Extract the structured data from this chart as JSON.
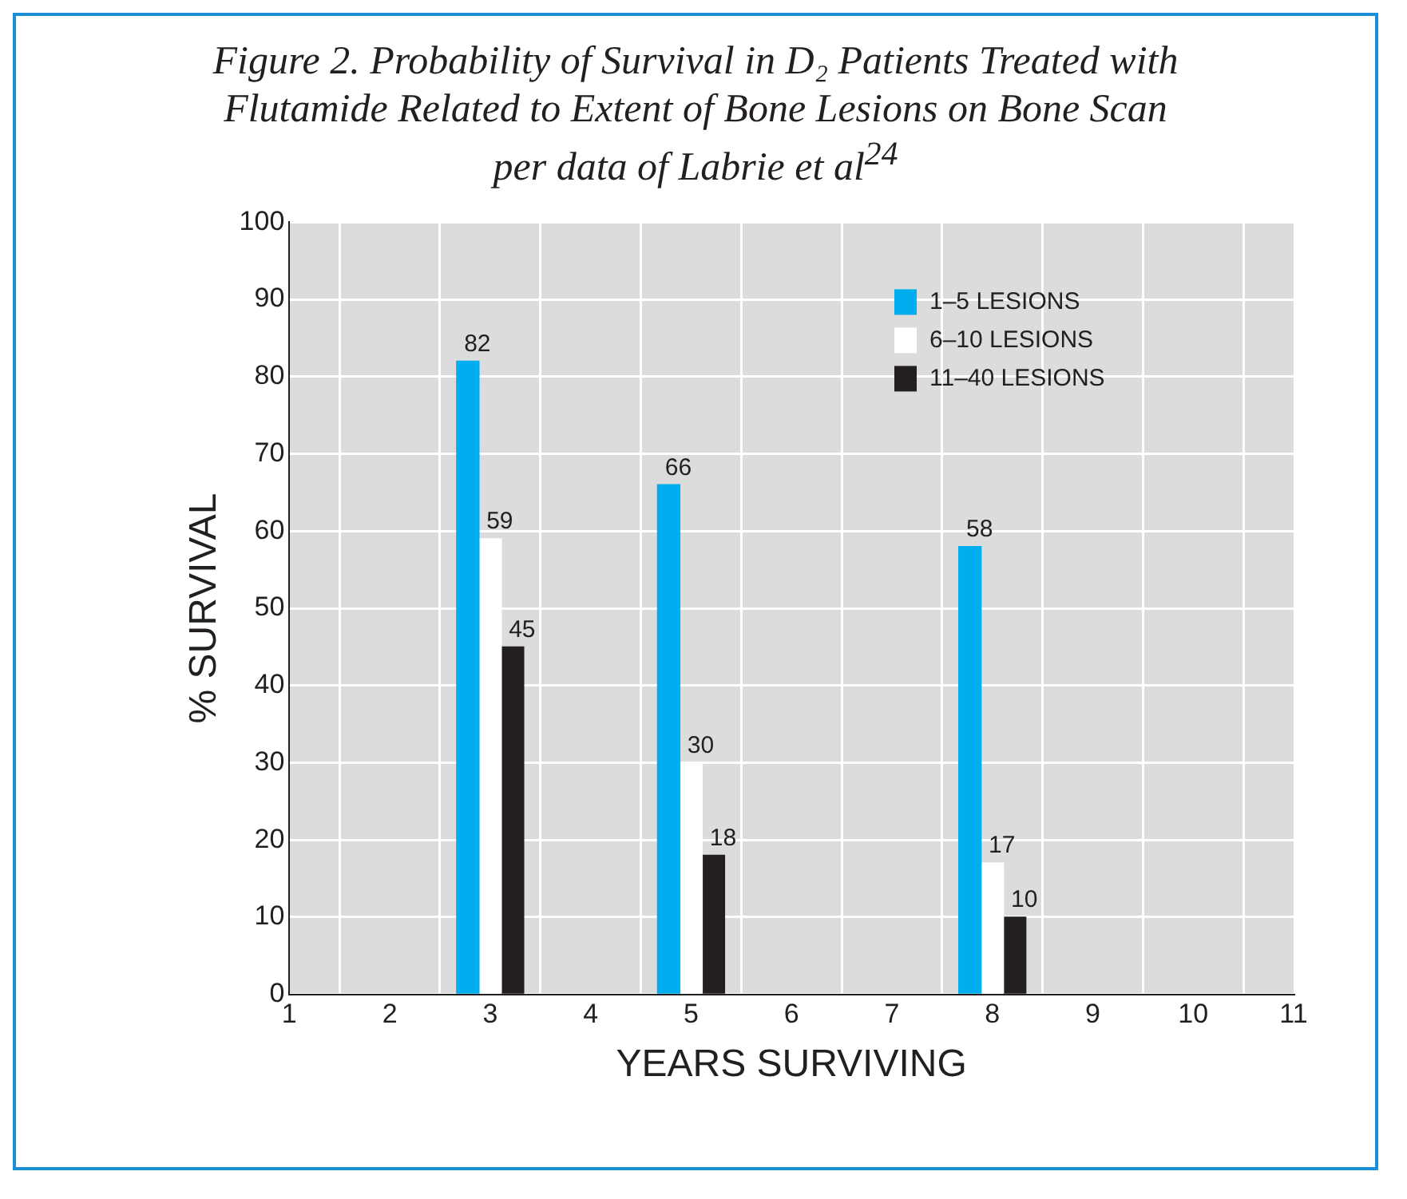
{
  "chart_data": {
    "type": "bar",
    "title": "Figure 2. Probability of Survival in D₂ Patients Treated with Flutamide Related to Extent of Bone Lesions on Bone Scan per data of Labrie et al$^{24}$",
    "xlabel": "YEARS SURVIVING",
    "ylabel": "% SURVIVAL",
    "x": [
      3,
      5,
      8
    ],
    "series": [
      {
        "name": "1–5 LESIONS",
        "color": "#00aeef",
        "values": [
          82,
          66,
          58
        ]
      },
      {
        "name": "6–10 LESIONS",
        "color": "#ffffff",
        "values": [
          59,
          30,
          17
        ]
      },
      {
        "name": "11–40 LESIONS",
        "color": "#231f20",
        "values": [
          45,
          18,
          10
        ]
      }
    ],
    "xlim": [
      1,
      11
    ],
    "xticks": [
      1,
      2,
      3,
      4,
      5,
      6,
      7,
      8,
      9,
      10,
      11
    ],
    "ylim": [
      0,
      100
    ],
    "yticks": [
      0,
      10,
      20,
      30,
      40,
      50,
      60,
      70,
      80,
      90,
      100
    ],
    "grid": true,
    "legend": "top right",
    "data_labels": true
  }
}
